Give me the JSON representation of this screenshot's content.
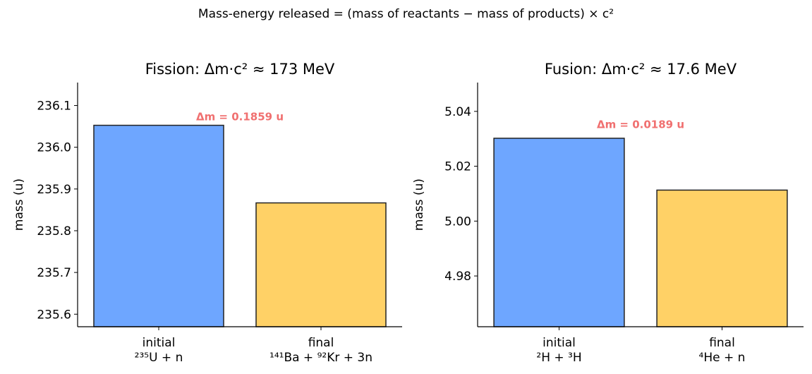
{
  "suptitle": "Mass-energy released = (mass of reactants − mass of products) × c²",
  "colors": {
    "initial": "#6ea6ff",
    "final": "#ffd166",
    "annotation": "#f07070",
    "edge": "#222222"
  },
  "chart_data": [
    {
      "type": "bar",
      "title": "Fission: Δm·c² ≈ 173 MeV",
      "xlabel": "",
      "ylabel": "mass (u)",
      "categories": [
        "initial\n²³⁵U + n",
        "final\n¹⁴¹Ba + ⁹²Kr + 3n"
      ],
      "values": [
        236.0526,
        235.8667
      ],
      "ylim": [
        235.57,
        236.155
      ],
      "yticks": [
        235.6,
        235.7,
        235.8,
        235.9,
        236.0,
        236.1
      ],
      "ytick_labels": [
        "235.6",
        "235.7",
        "235.8",
        "235.9",
        "236.0",
        "236.1"
      ],
      "annotation": "Δm = 0.1859 u",
      "annotation_value": 236.075,
      "grid": false,
      "legend": "none"
    },
    {
      "type": "bar",
      "title": "Fusion: Δm·c² ≈ 17.6 MeV",
      "xlabel": "",
      "ylabel": "mass (u)",
      "categories": [
        "initial\n²H + ³H",
        "final\n⁴He + n"
      ],
      "values": [
        5.0302,
        5.0113
      ],
      "ylim": [
        4.9615,
        5.0505
      ],
      "yticks": [
        4.98,
        5.0,
        5.02,
        5.04
      ],
      "ytick_labels": [
        "4.98",
        "5.00",
        "5.02",
        "5.04"
      ],
      "annotation": "Δm = 0.0189 u",
      "annotation_value": 5.0355,
      "grid": false,
      "legend": "none"
    }
  ]
}
